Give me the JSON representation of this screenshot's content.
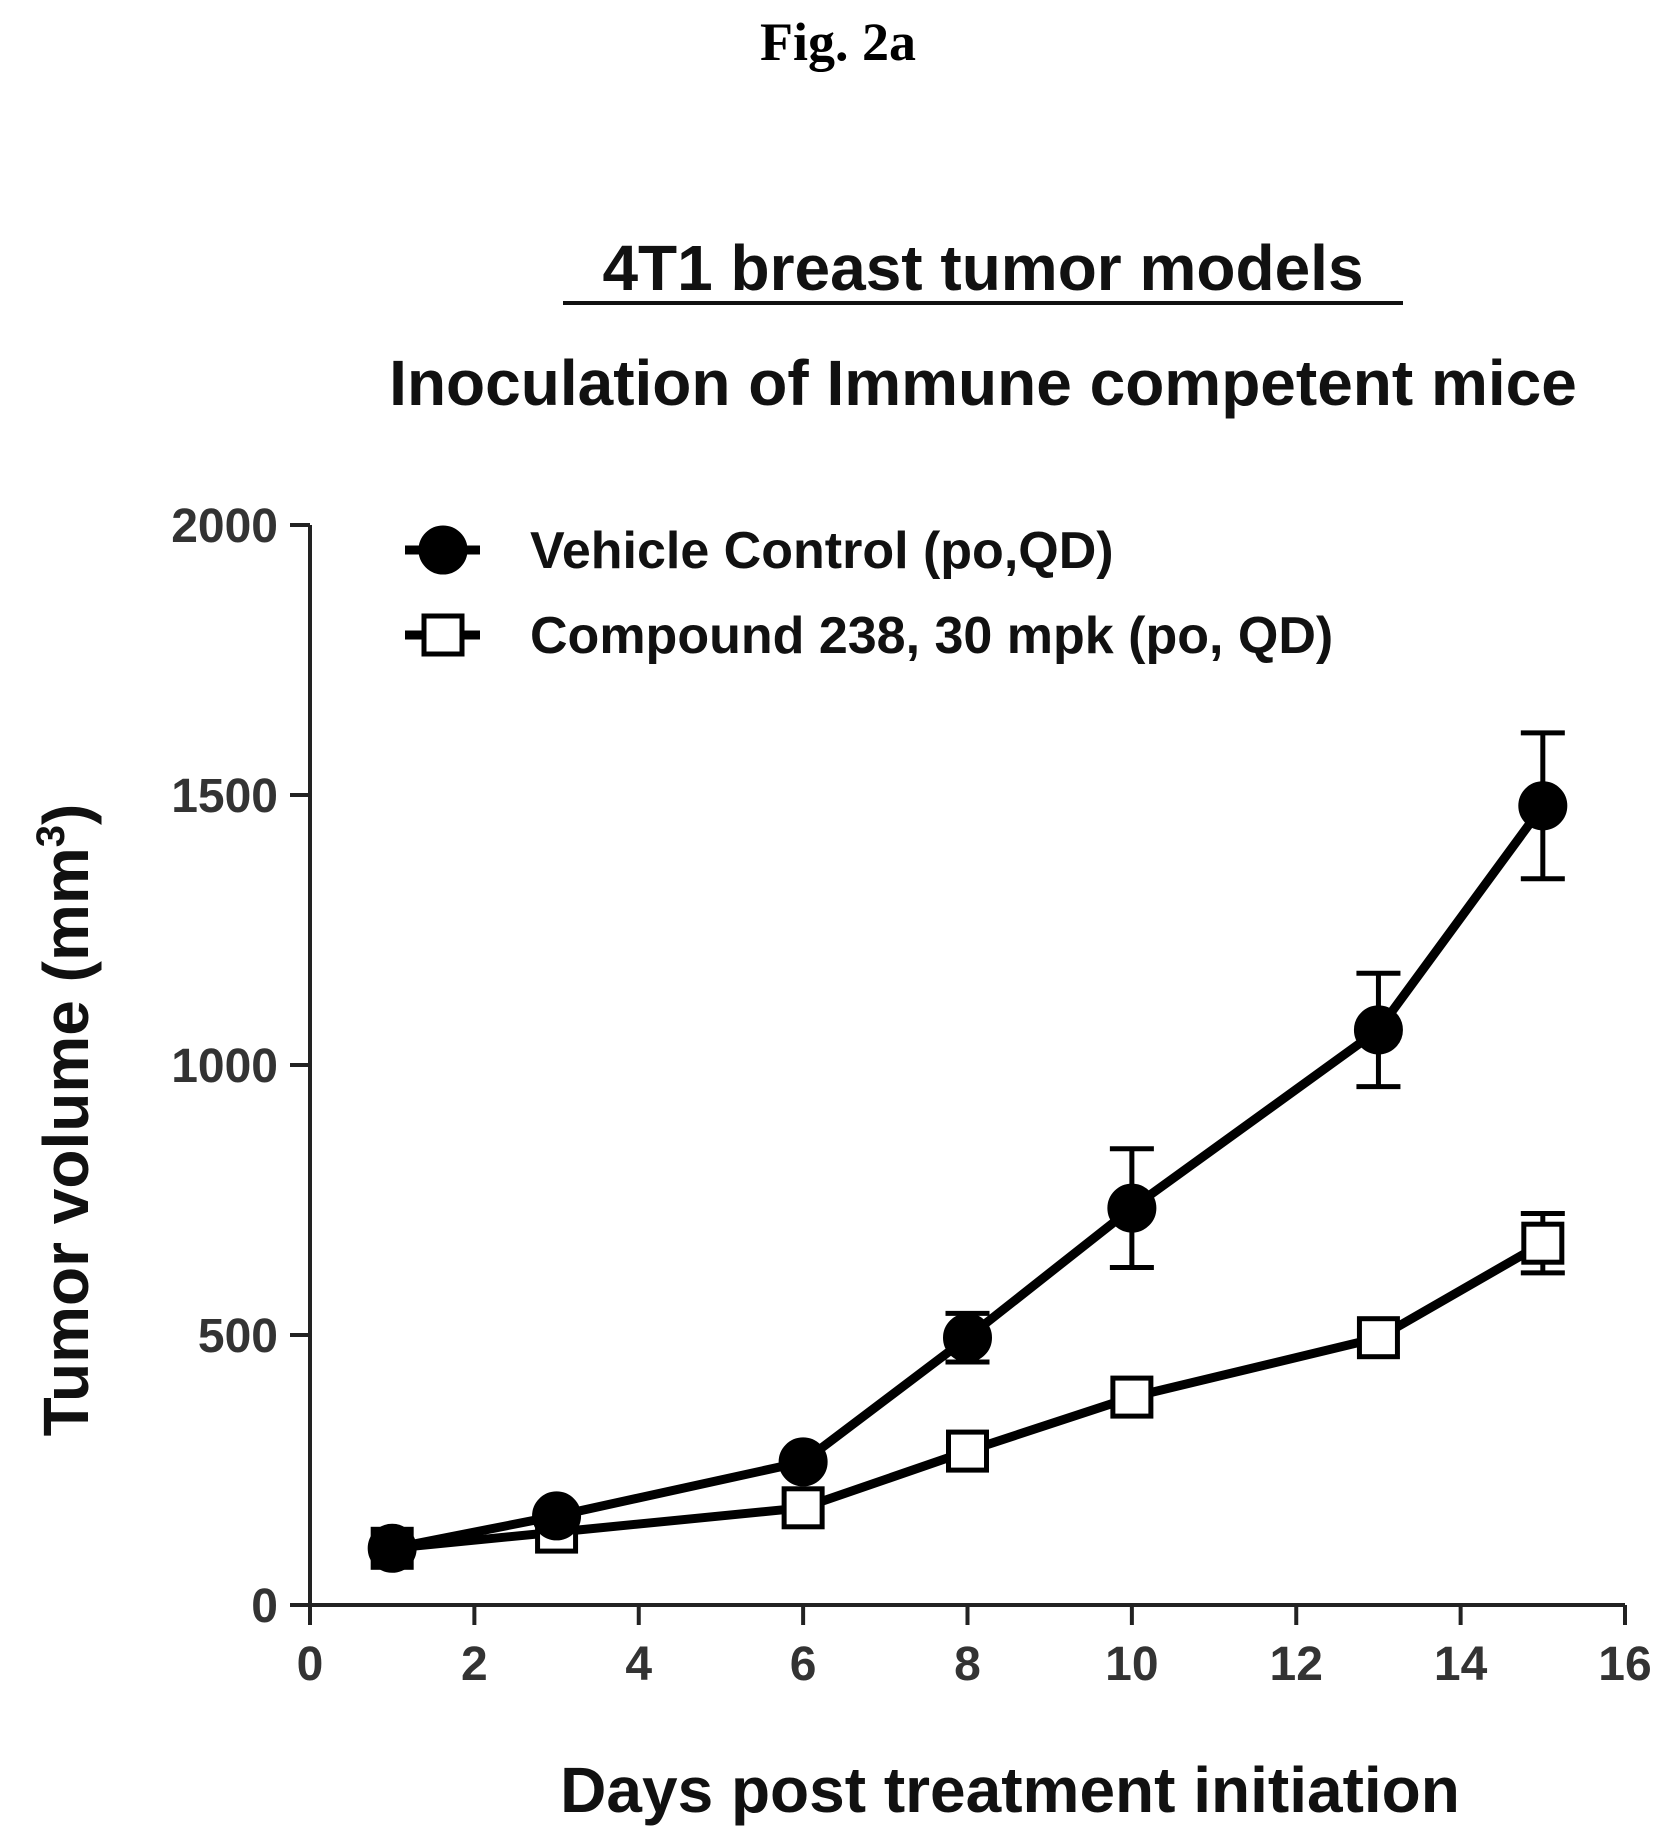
{
  "figure_label": "Fig. 2a",
  "chart_data": {
    "type": "line",
    "title": "4T1 breast tumor models",
    "subtitle": "Inoculation of Immune competent mice",
    "xlabel": "Days post treatment initiation",
    "ylabel_main": "Tumor volume (mm",
    "ylabel_sup": "3",
    "ylabel_close": ")",
    "xlim": [
      0,
      16
    ],
    "ylim": [
      0,
      2000
    ],
    "xticks": [
      0,
      2,
      4,
      6,
      8,
      10,
      12,
      14,
      16
    ],
    "yticks": [
      0,
      500,
      1000,
      1500,
      2000
    ],
    "grid": false,
    "legend_position": "top-left",
    "series": [
      {
        "name": "Vehicle Control (po,QD)",
        "marker": "filled-circle",
        "color": "#000000",
        "x": [
          1,
          3,
          6,
          8,
          10,
          13,
          15
        ],
        "y": [
          105,
          165,
          265,
          495,
          735,
          1065,
          1480
        ],
        "err": [
          0,
          0,
          0,
          45,
          110,
          105,
          135
        ]
      },
      {
        "name": "Compound 238, 30 mpk (po, QD)",
        "marker": "open-square",
        "color": "#000000",
        "x": [
          1,
          3,
          6,
          8,
          10,
          13,
          15
        ],
        "y": [
          105,
          135,
          180,
          285,
          385,
          495,
          670
        ],
        "err": [
          0,
          0,
          0,
          0,
          0,
          0,
          55
        ]
      }
    ]
  }
}
